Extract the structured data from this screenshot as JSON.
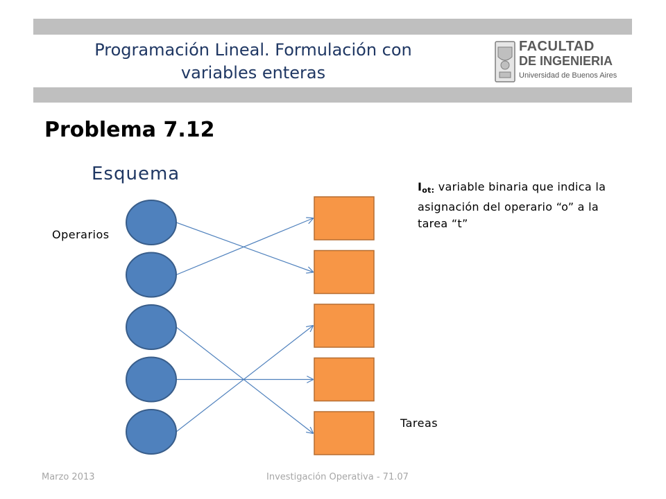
{
  "header": {
    "title_line1": "Programación Lineal. Formulación con",
    "title_line2": "variables enteras",
    "logo": {
      "line1": "FACULTAD",
      "line2": "DE INGENIERIA",
      "line3": "Universidad de Buenos Aires"
    }
  },
  "problem_title": "Problema 7.12",
  "schema_title": "Esquema",
  "labels": {
    "operators": "Operarios",
    "tasks": "Tareas"
  },
  "note": {
    "variable": "I",
    "subscript": "ot:",
    "text_line1": "variable binaria que indica la",
    "text_line2": "asignación del operario “o” a la",
    "text_line3": "tarea “t”"
  },
  "diagram": {
    "operator_color": "#4f81bd",
    "task_color": "#f79646",
    "arrow_color": "#4f81bd",
    "operators_count": 5,
    "tasks_count": 5,
    "assignments": [
      {
        "operator": 1,
        "task": 2
      },
      {
        "operator": 2,
        "task": 1
      },
      {
        "operator": 3,
        "task": 5
      },
      {
        "operator": 4,
        "task": 4
      },
      {
        "operator": 5,
        "task": 3
      }
    ]
  },
  "footer": {
    "date": "Marzo 2013",
    "course": "Investigación Operativa - 71.07"
  }
}
